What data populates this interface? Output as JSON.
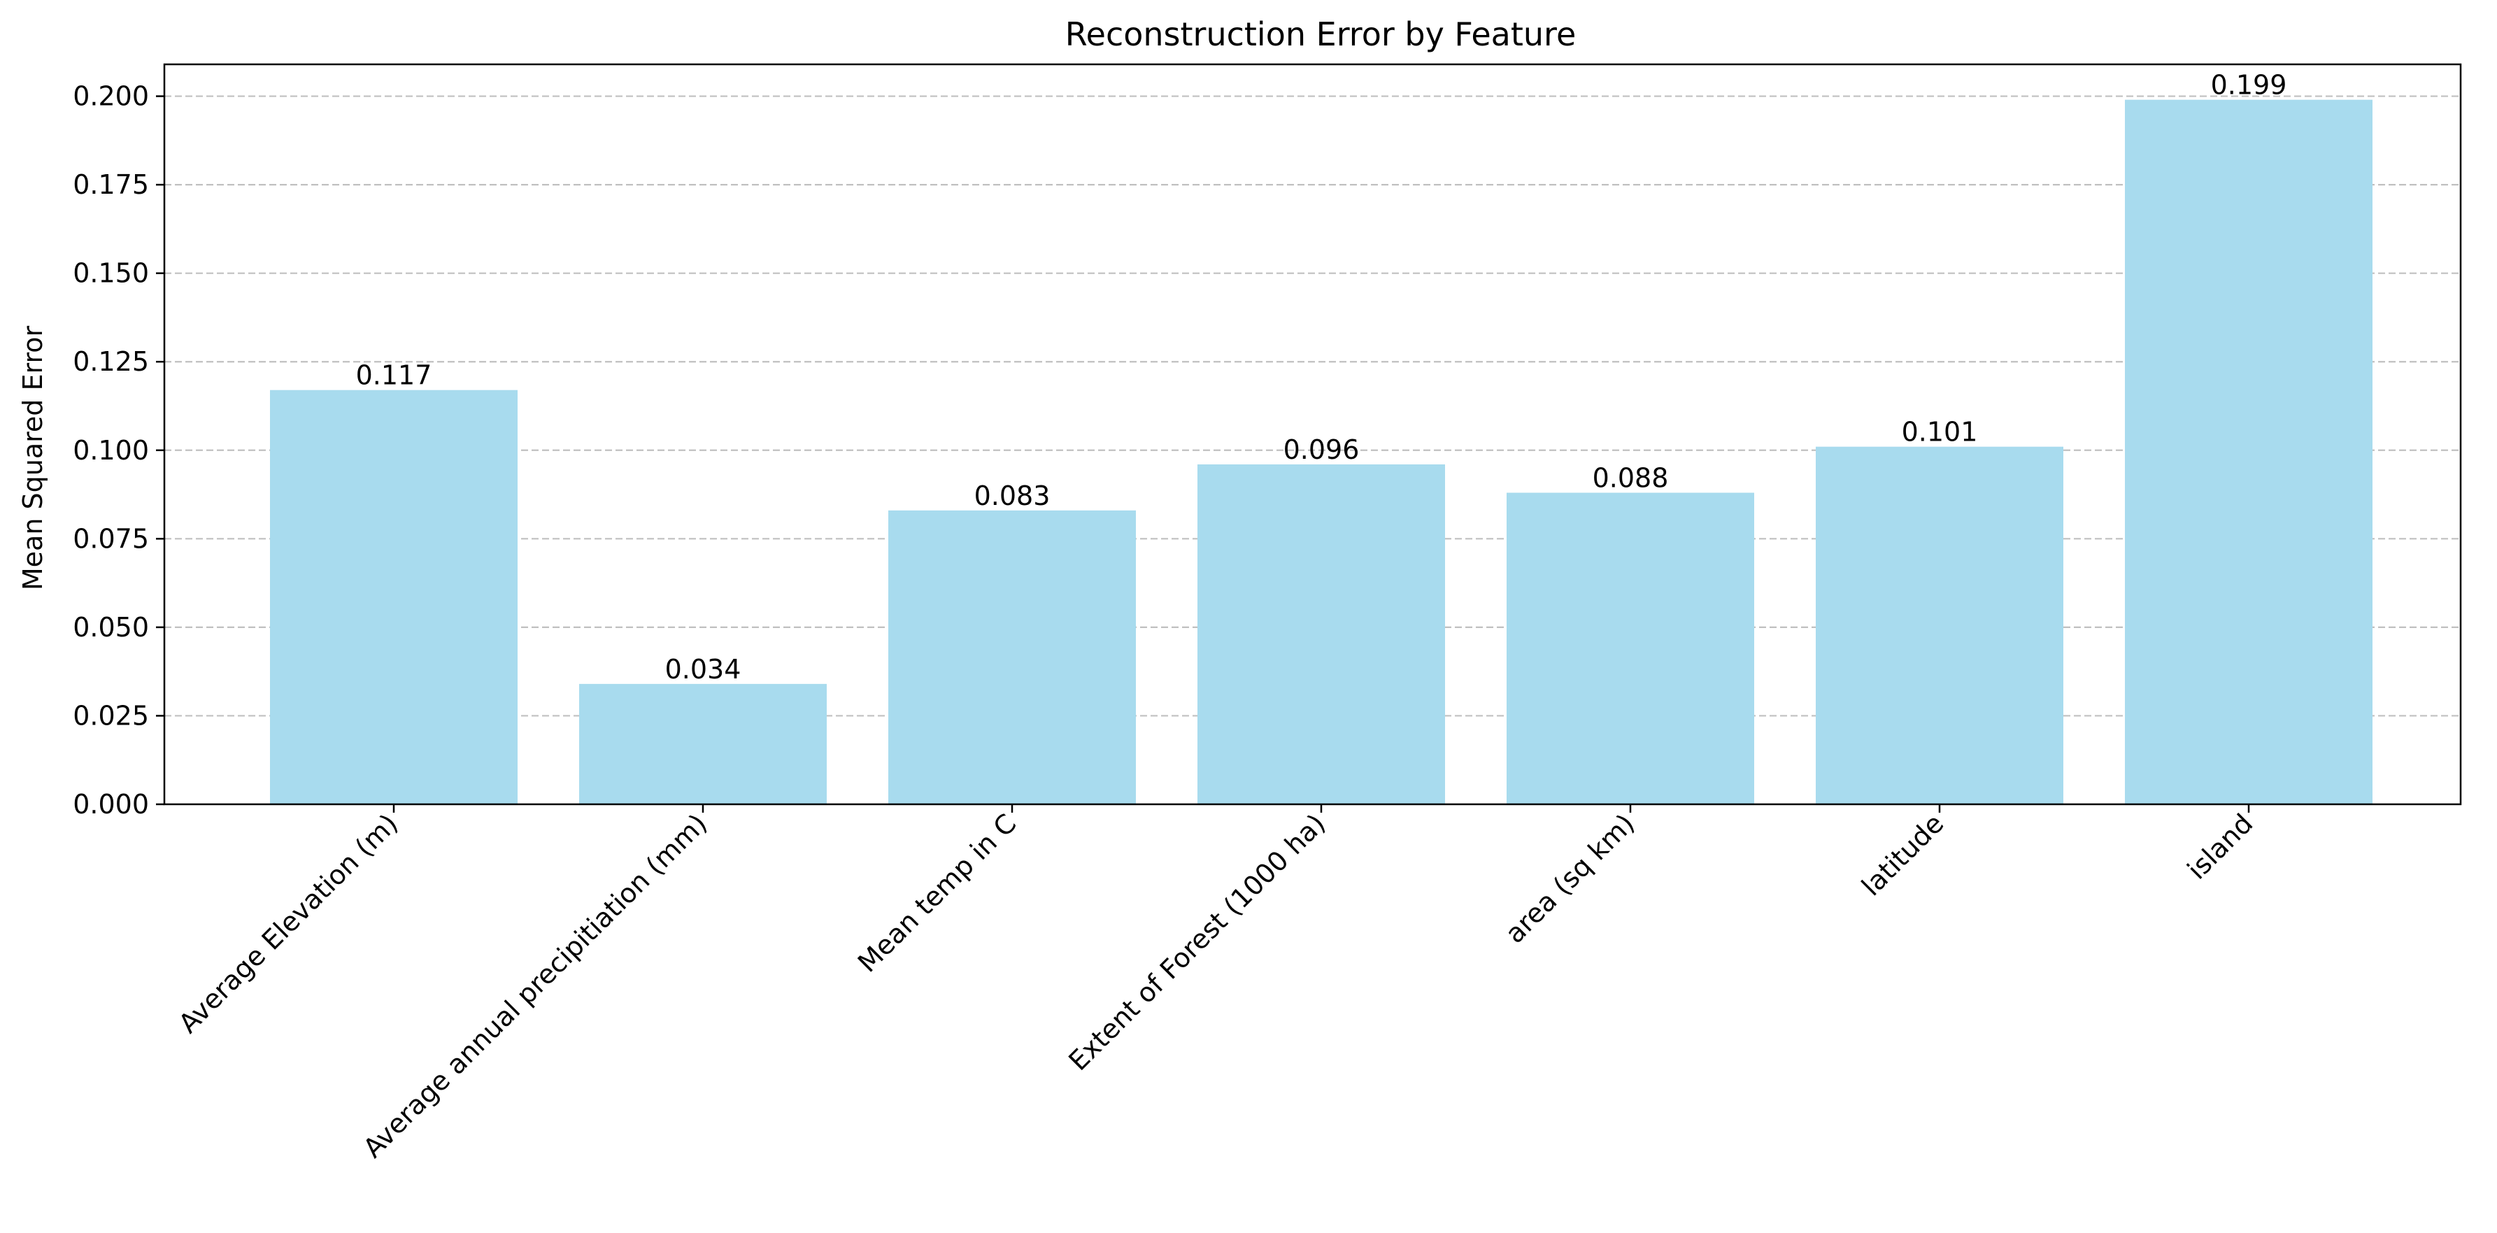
{
  "colors": {
    "bar": "#a8dbee",
    "grid": "#c0c0c0",
    "axis": "#000000",
    "text": "#000000"
  },
  "chart_data": {
    "type": "bar",
    "title": "Reconstruction Error by Feature",
    "xlabel": "",
    "ylabel": "Mean Squared Error",
    "categories": [
      "Average Elevation (m)",
      "Average annual precipitiation (mm)",
      "Mean temp in C",
      "Extent of Forest (1000 ha)",
      "area (sq km)",
      "latitude",
      "island"
    ],
    "values": [
      0.117,
      0.034,
      0.083,
      0.096,
      0.088,
      0.101,
      0.199
    ],
    "value_labels": [
      "0.117",
      "0.034",
      "0.083",
      "0.096",
      "0.088",
      "0.101",
      "0.199"
    ],
    "ylim": [
      0,
      0.209
    ],
    "yticks": [
      0.0,
      0.025,
      0.05,
      0.075,
      0.1,
      0.125,
      0.15,
      0.175,
      0.2
    ],
    "ytick_labels": [
      "0.000",
      "0.025",
      "0.050",
      "0.075",
      "0.100",
      "0.125",
      "0.150",
      "0.175",
      "0.200"
    ],
    "grid": "y-dashed",
    "xtick_rotation": "45"
  }
}
